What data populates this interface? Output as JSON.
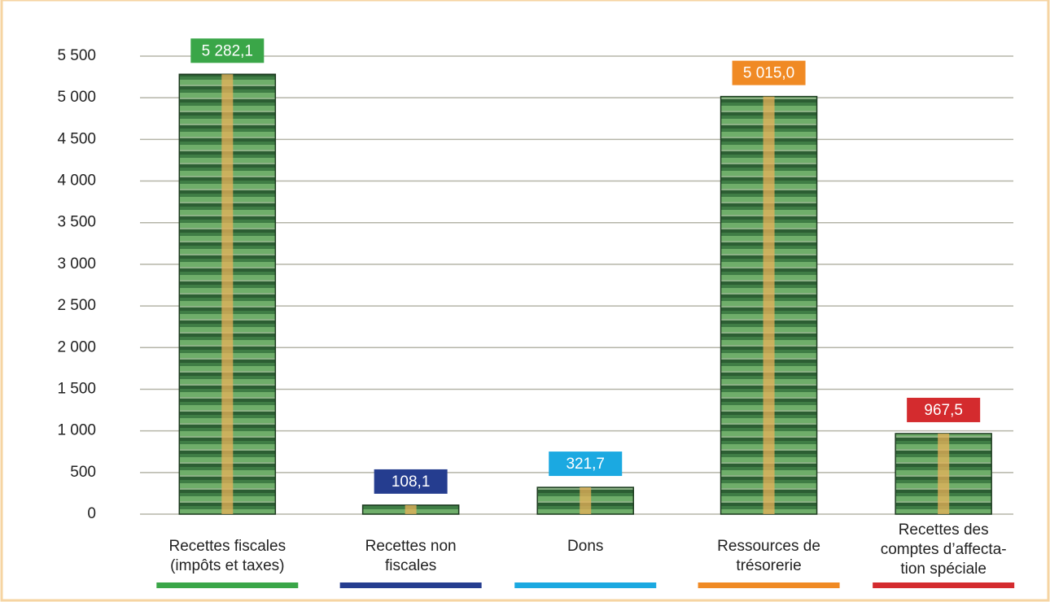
{
  "chart_data": {
    "type": "bar",
    "categories": [
      "Recettes fiscales (impôts et taxes)",
      "Recettes non fiscales",
      "Dons",
      "Ressources de trésorerie",
      "Recettes des comptes d’affecta-tion spéciale"
    ],
    "values": [
      5282.1,
      108.1,
      321.7,
      5015.0,
      967.5
    ],
    "value_labels": [
      "5 282,1",
      "108,1",
      "321,7",
      "5 015,0",
      "967,5"
    ],
    "colors": [
      "#3aa648",
      "#253d8f",
      "#1ba9e1",
      "#f08a24",
      "#d42b2e"
    ],
    "ylim": [
      0,
      5500
    ],
    "yticks": [
      0,
      500,
      {
        "value": 1000,
        "label": "1 000"
      },
      {
        "value": 1500,
        "label": "1 500"
      },
      {
        "value": 2000,
        "label": "2 000"
      },
      {
        "value": 2500,
        "label": "2 500"
      },
      {
        "value": 3000,
        "label": "3 000"
      },
      {
        "value": 3500,
        "label": "3 500"
      },
      {
        "value": 4000,
        "label": "4 000"
      },
      {
        "value": 4500,
        "label": "4 500"
      },
      {
        "value": 5000,
        "label": "5 000"
      },
      {
        "value": 5500,
        "label": "5 500"
      }
    ],
    "grid": true
  }
}
